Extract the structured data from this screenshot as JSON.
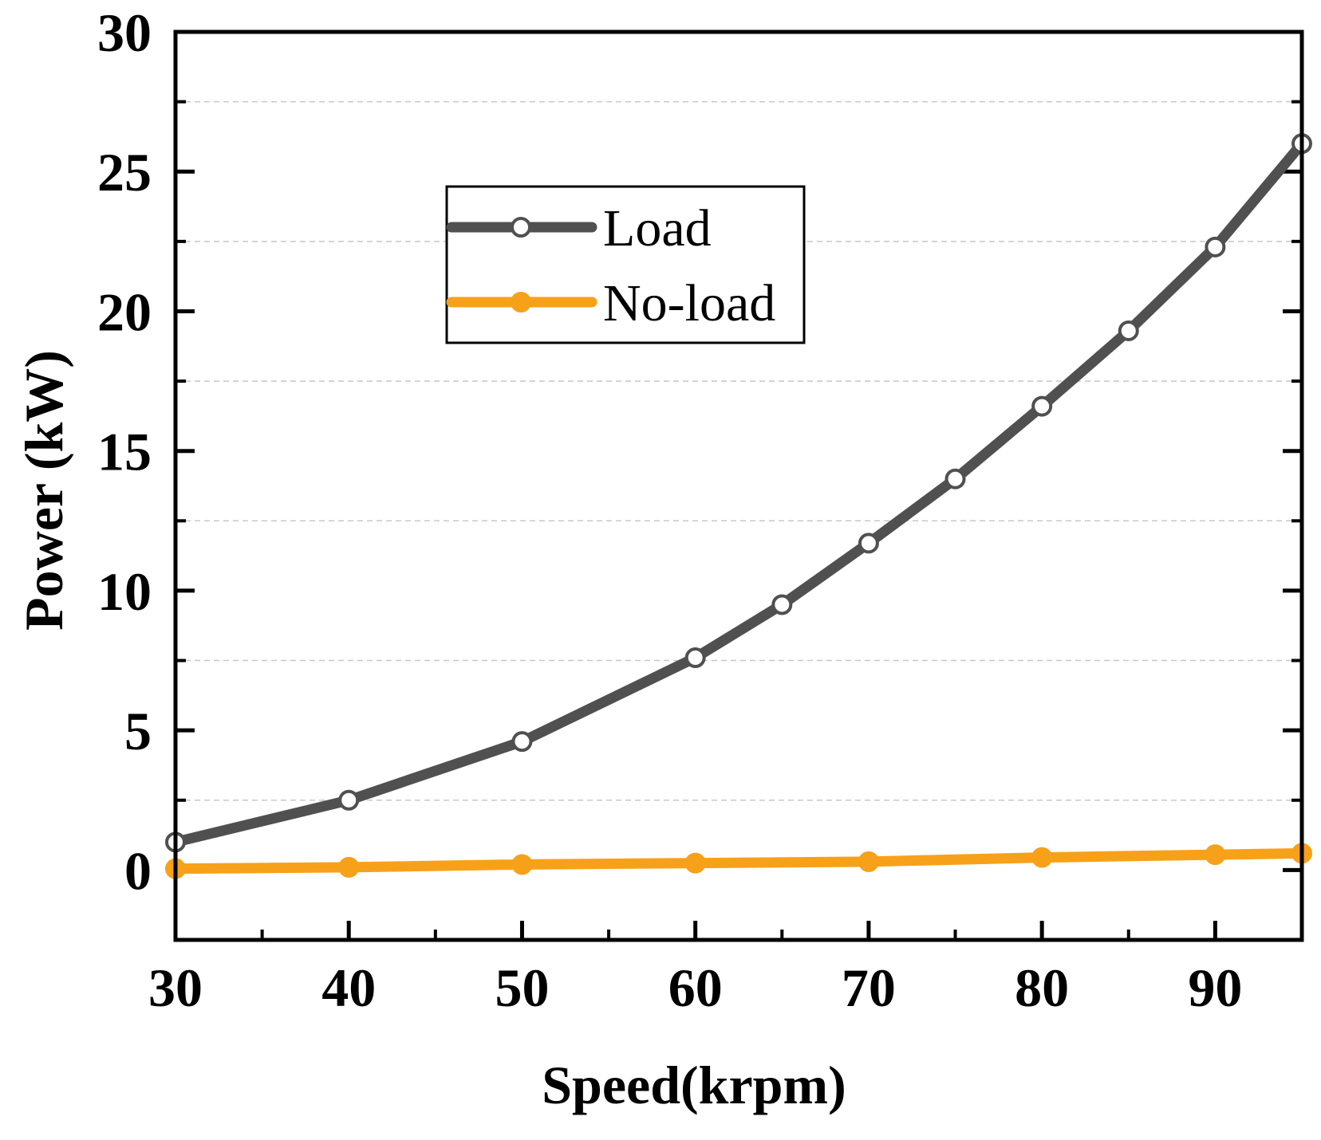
{
  "chart_data": {
    "type": "line",
    "title": "",
    "xlabel": "Speed(krpm)",
    "ylabel": "Power (kW)",
    "xlim": [
      30,
      95
    ],
    "ylim": [
      -2.5,
      30
    ],
    "xticks": [
      30,
      40,
      50,
      60,
      70,
      80,
      90
    ],
    "yticks": [
      0,
      5,
      10,
      15,
      20,
      25,
      30
    ],
    "grid": "horizontal dashed",
    "legend_position": "upper-left",
    "series": [
      {
        "name": "Load",
        "color": "#505050",
        "marker": "open-circle",
        "x": [
          30,
          40,
          50,
          60,
          65,
          70,
          75,
          80,
          85,
          90,
          95
        ],
        "y": [
          1.0,
          2.5,
          4.6,
          7.6,
          9.5,
          11.7,
          14.0,
          16.6,
          19.3,
          22.3,
          26.0
        ]
      },
      {
        "name": "No-load",
        "color": "#f7a11a",
        "marker": "filled-circle",
        "x": [
          30,
          40,
          50,
          60,
          70,
          80,
          90,
          95
        ],
        "y": [
          0.05,
          0.1,
          0.2,
          0.25,
          0.3,
          0.45,
          0.55,
          0.6
        ]
      }
    ]
  }
}
